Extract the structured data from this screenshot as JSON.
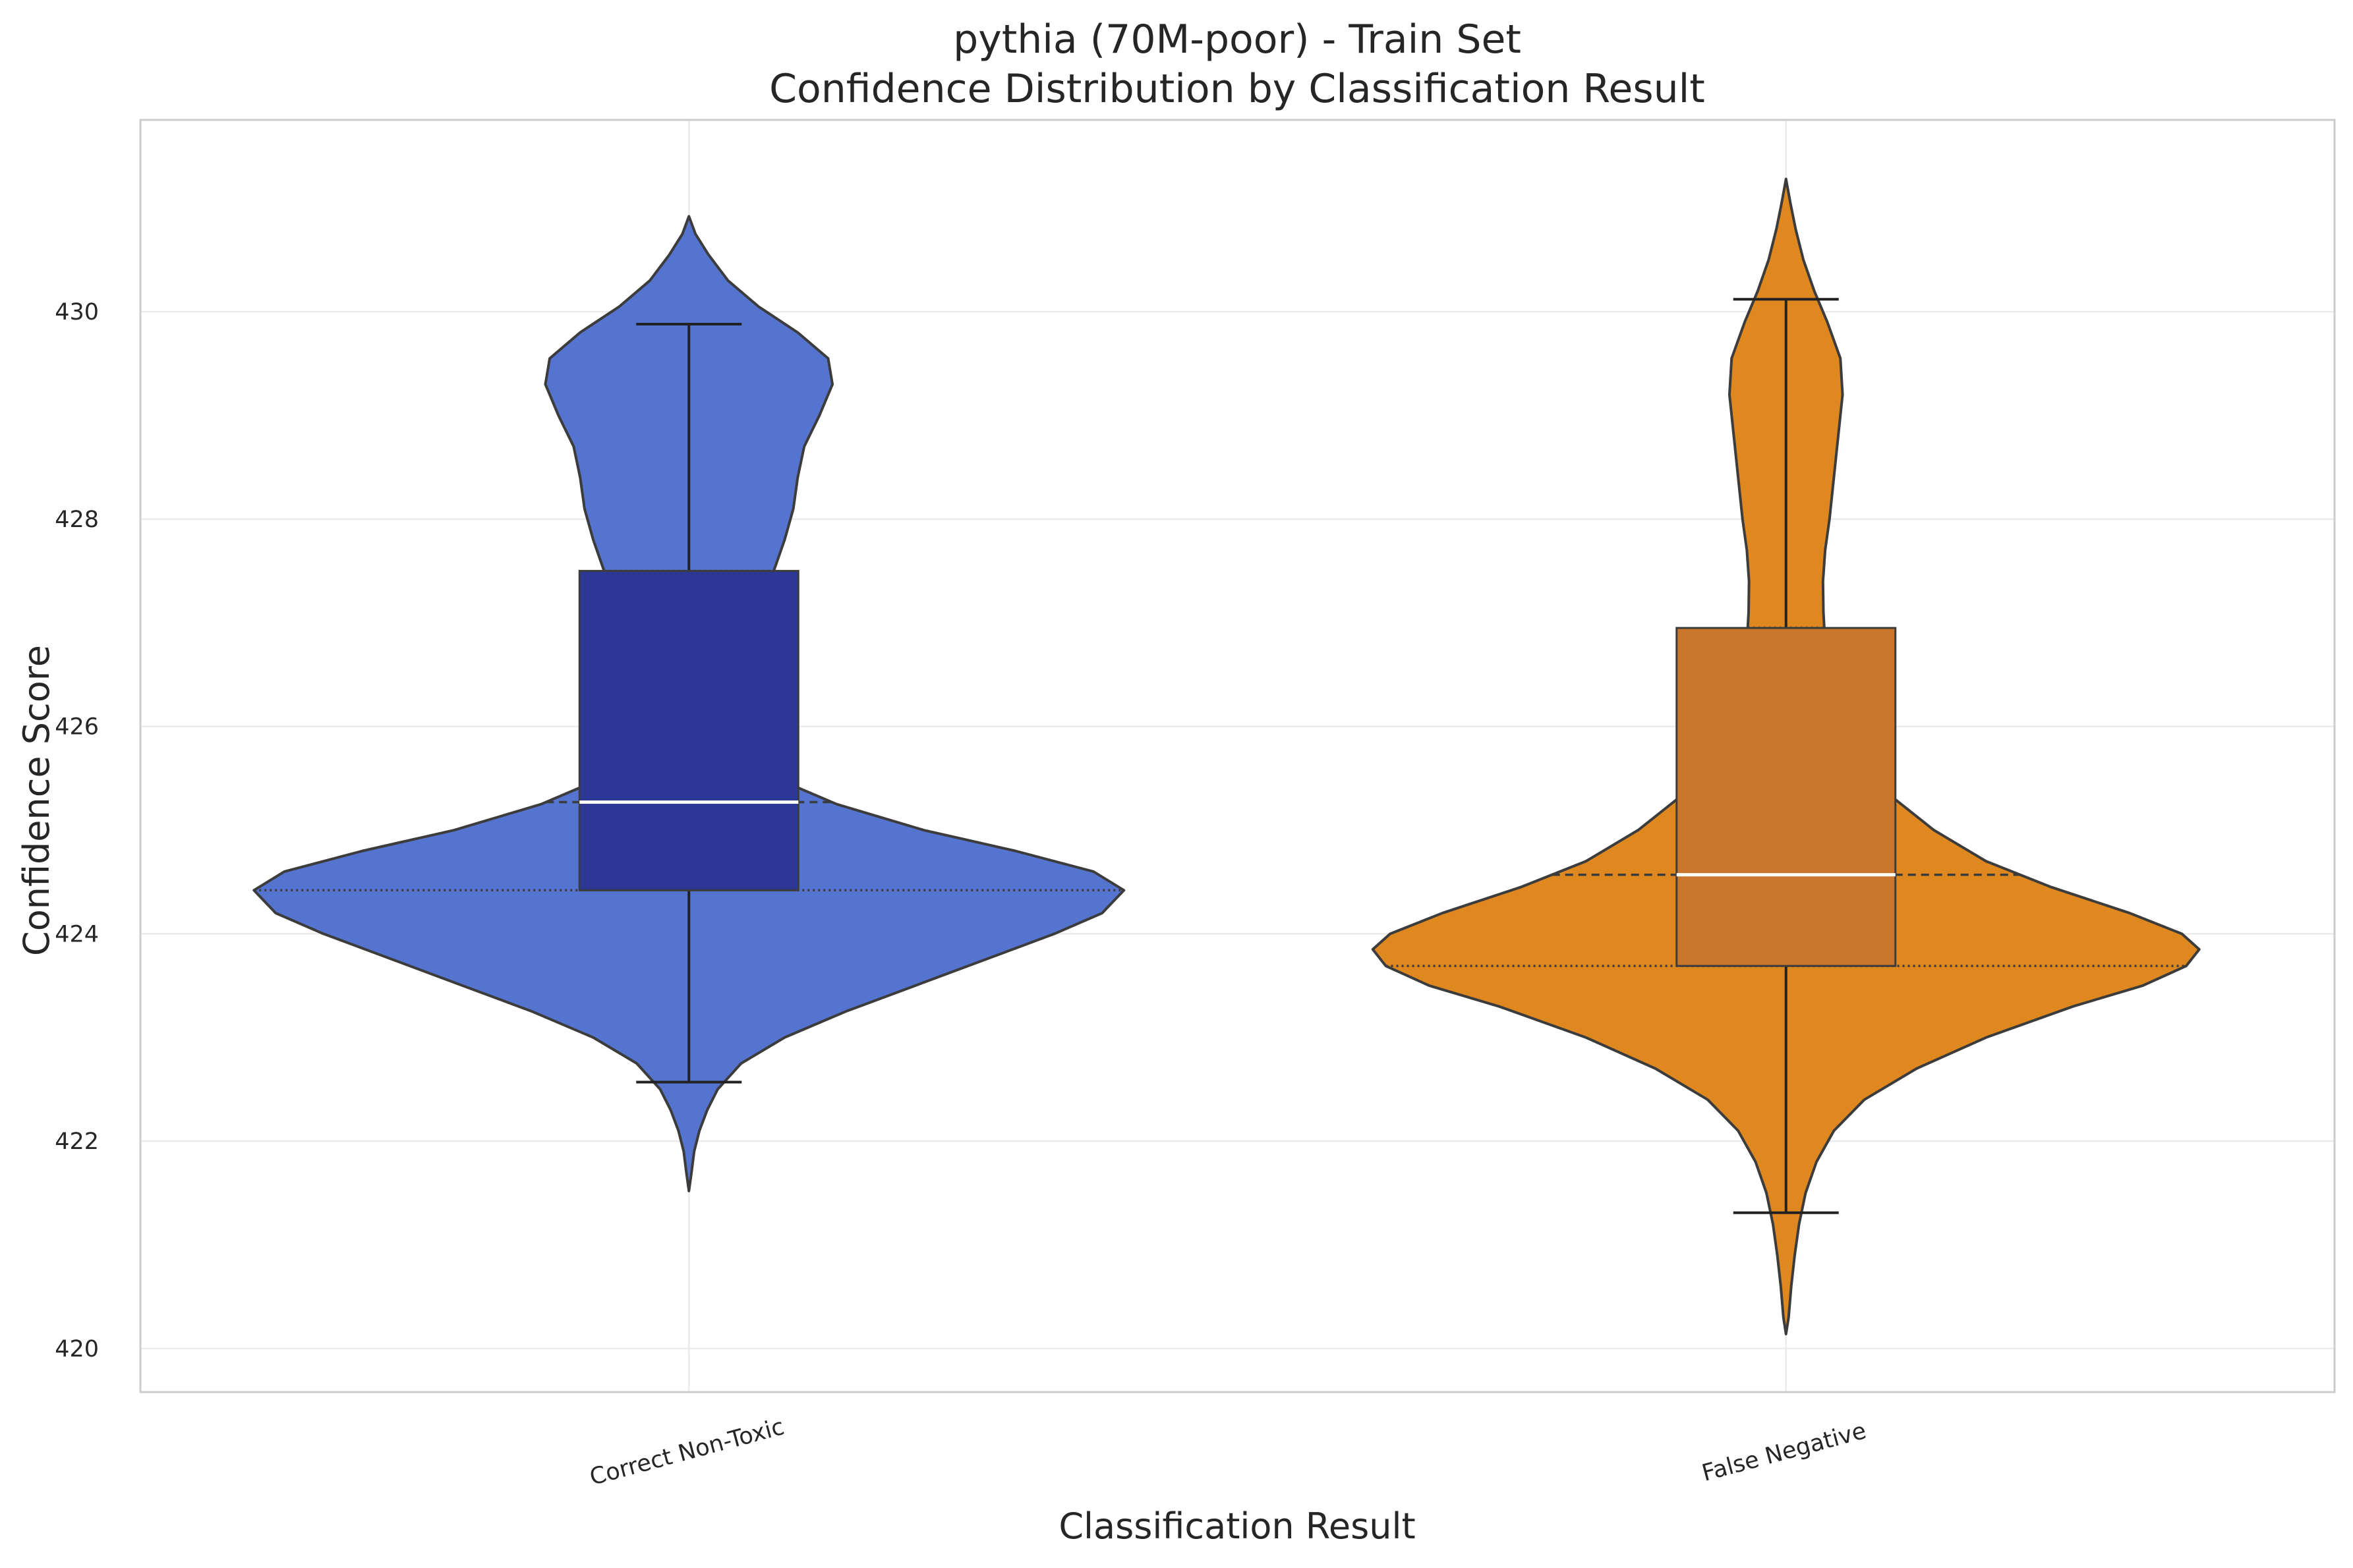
{
  "chart_data": {
    "type": "violin",
    "title": "pythia (70M-poor) - Train Set",
    "subtitle": "Confidence Distribution by Classification Result",
    "xlabel": "Classification Result",
    "ylabel": "Confidence Score",
    "ylim": [
      419.58,
      431.85
    ],
    "yticks": [
      "420",
      "422",
      "424",
      "426",
      "428",
      "430"
    ],
    "grid": true,
    "categories": [
      "Correct Non-Toxic",
      "False Negative"
    ],
    "colors": {
      "violin": [
        "#5574cf",
        "#e08820"
      ],
      "box": [
        "#2c3796",
        "#c9762c"
      ],
      "outline": "#3c3c3c",
      "median_line": "#ffffff",
      "grid": "#ebebeb",
      "frame": "#cccccc"
    },
    "series": [
      {
        "name": "Correct Non-Toxic",
        "q1": 424.42,
        "median": 425.27,
        "q3": 427.5,
        "whisker_low": 422.57,
        "whisker_high": 429.88,
        "kde_min": 421.52,
        "kde_max": 430.92,
        "density": [
          [
            421.52,
            0.0
          ],
          [
            421.7,
            0.006
          ],
          [
            421.9,
            0.012
          ],
          [
            422.1,
            0.024
          ],
          [
            422.3,
            0.042
          ],
          [
            422.5,
            0.066
          ],
          [
            422.75,
            0.12
          ],
          [
            423.0,
            0.22
          ],
          [
            423.25,
            0.36
          ],
          [
            423.5,
            0.52
          ],
          [
            423.75,
            0.68
          ],
          [
            424.0,
            0.84
          ],
          [
            424.2,
            0.95
          ],
          [
            424.42,
            1.0
          ],
          [
            424.6,
            0.93
          ],
          [
            424.8,
            0.75
          ],
          [
            425.0,
            0.54
          ],
          [
            425.25,
            0.34
          ],
          [
            425.5,
            0.2
          ],
          [
            425.75,
            0.13
          ],
          [
            426.0,
            0.11
          ],
          [
            426.3,
            0.115
          ],
          [
            426.6,
            0.125
          ],
          [
            426.9,
            0.14
          ],
          [
            427.2,
            0.165
          ],
          [
            427.5,
            0.195
          ],
          [
            427.8,
            0.22
          ],
          [
            428.1,
            0.24
          ],
          [
            428.4,
            0.25
          ],
          [
            428.7,
            0.265
          ],
          [
            429.0,
            0.3
          ],
          [
            429.3,
            0.33
          ],
          [
            429.55,
            0.32
          ],
          [
            429.8,
            0.25
          ],
          [
            430.05,
            0.16
          ],
          [
            430.3,
            0.09
          ],
          [
            430.55,
            0.045
          ],
          [
            430.75,
            0.015
          ],
          [
            430.92,
            0.0
          ]
        ]
      },
      {
        "name": "False Negative",
        "q1": 423.69,
        "median": 424.57,
        "q3": 426.95,
        "whisker_low": 421.31,
        "whisker_high": 430.12,
        "kde_min": 420.14,
        "kde_max": 431.28,
        "density": [
          [
            420.14,
            0.0
          ],
          [
            420.3,
            0.006
          ],
          [
            420.6,
            0.012
          ],
          [
            420.9,
            0.02
          ],
          [
            421.2,
            0.03
          ],
          [
            421.5,
            0.045
          ],
          [
            421.8,
            0.07
          ],
          [
            422.1,
            0.11
          ],
          [
            422.4,
            0.18
          ],
          [
            422.7,
            0.3
          ],
          [
            423.0,
            0.46
          ],
          [
            423.3,
            0.66
          ],
          [
            423.5,
            0.82
          ],
          [
            423.69,
            0.92
          ],
          [
            423.85,
            0.95
          ],
          [
            424.0,
            0.91
          ],
          [
            424.2,
            0.79
          ],
          [
            424.45,
            0.61
          ],
          [
            424.7,
            0.46
          ],
          [
            425.0,
            0.34
          ],
          [
            425.3,
            0.25
          ],
          [
            425.6,
            0.19
          ],
          [
            425.9,
            0.15
          ],
          [
            426.2,
            0.12
          ],
          [
            426.5,
            0.1
          ],
          [
            426.8,
            0.09
          ],
          [
            427.1,
            0.086
          ],
          [
            427.4,
            0.085
          ],
          [
            427.7,
            0.09
          ],
          [
            428.0,
            0.1
          ],
          [
            428.4,
            0.11
          ],
          [
            428.8,
            0.12
          ],
          [
            429.2,
            0.13
          ],
          [
            429.55,
            0.125
          ],
          [
            429.9,
            0.095
          ],
          [
            430.2,
            0.065
          ],
          [
            430.5,
            0.04
          ],
          [
            430.8,
            0.022
          ],
          [
            431.05,
            0.01
          ],
          [
            431.28,
            0.0
          ]
        ]
      }
    ]
  }
}
